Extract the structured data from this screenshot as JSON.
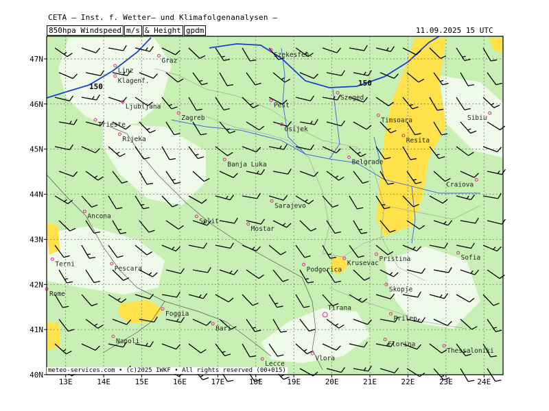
{
  "header": {
    "organization": "CETA – Inst. f. Wetter– und Klimafolgenanalysen –",
    "param_parts": [
      "850hpa Windspeed",
      "m/s",
      "& Height",
      "gpdm"
    ],
    "valid_time": "11.09.2025 15 UTC"
  },
  "footer": {
    "credit": "meteo-services.com • (c)2025 IWKF • All rights reserved (00+015)"
  },
  "map": {
    "lon_range": [
      12.5,
      24.5
    ],
    "lat_range": [
      40.0,
      47.5
    ],
    "lat_labels": [
      {
        "lat": 47,
        "text": "47N"
      },
      {
        "lat": 46,
        "text": "46N"
      },
      {
        "lat": 45,
        "text": "45N"
      },
      {
        "lat": 44,
        "text": "44N"
      },
      {
        "lat": 43,
        "text": "43N"
      },
      {
        "lat": 42,
        "text": "42N"
      },
      {
        "lat": 41,
        "text": "41N"
      },
      {
        "lat": 40,
        "text": "40N"
      }
    ],
    "lon_labels": [
      {
        "lon": 13,
        "text": "13E"
      },
      {
        "lon": 14,
        "text": "14E"
      },
      {
        "lon": 15,
        "text": "15E"
      },
      {
        "lon": 16,
        "text": "16E"
      },
      {
        "lon": 17,
        "text": "17E"
      },
      {
        "lon": 18,
        "text": "18E"
      },
      {
        "lon": 19,
        "text": "19E"
      },
      {
        "lon": 20,
        "text": "20E"
      },
      {
        "lon": 21,
        "text": "21E"
      },
      {
        "lon": 22,
        "text": "22E"
      },
      {
        "lon": 23,
        "text": "23E"
      },
      {
        "lon": 24,
        "text": "24E"
      }
    ],
    "contour_label": "150",
    "colors": {
      "calm": "#f0faea",
      "light": "#c8f0b4",
      "moderate": "#ffe14a",
      "contour": "#1a3fd6",
      "city_marker": "#d0308c"
    },
    "cities": [
      {
        "name": "Linz",
        "lon": 14.3,
        "lat": 46.85
      },
      {
        "name": "Graz",
        "lon": 15.45,
        "lat": 47.07
      },
      {
        "name": "Szekesfeh.",
        "lon": 18.4,
        "lat": 47.2
      },
      {
        "name": "Klagenf.",
        "lon": 14.3,
        "lat": 46.62
      },
      {
        "name": "Ljubljana",
        "lon": 14.5,
        "lat": 46.05
      },
      {
        "name": "Zagreb",
        "lon": 15.97,
        "lat": 45.8
      },
      {
        "name": "Pest",
        "lon": 18.4,
        "lat": 46.08
      },
      {
        "name": "Szeged",
        "lon": 20.15,
        "lat": 46.25
      },
      {
        "name": "Timsoara",
        "lon": 21.22,
        "lat": 45.75
      },
      {
        "name": "Sibiu",
        "lon": 24.15,
        "lat": 45.8
      },
      {
        "name": "Trieste",
        "lon": 13.78,
        "lat": 45.65
      },
      {
        "name": "Rijeka",
        "lon": 14.42,
        "lat": 45.33
      },
      {
        "name": "Osijek",
        "lon": 18.68,
        "lat": 45.55
      },
      {
        "name": "Resita",
        "lon": 21.88,
        "lat": 45.3
      },
      {
        "name": "Banja Luka",
        "lon": 17.18,
        "lat": 44.77
      },
      {
        "name": "Belgrade",
        "lon": 20.45,
        "lat": 44.82
      },
      {
        "name": "Craiova",
        "lon": 23.8,
        "lat": 44.32
      },
      {
        "name": "Sarajevo",
        "lon": 18.42,
        "lat": 43.85
      },
      {
        "name": "Ancona",
        "lon": 13.5,
        "lat": 43.62
      },
      {
        "name": "Split",
        "lon": 16.44,
        "lat": 43.51
      },
      {
        "name": "Mostar",
        "lon": 17.8,
        "lat": 43.34
      },
      {
        "name": "Terni",
        "lon": 12.65,
        "lat": 42.56
      },
      {
        "name": "Pristina",
        "lon": 21.17,
        "lat": 42.67
      },
      {
        "name": "Sofia",
        "lon": 23.32,
        "lat": 42.7
      },
      {
        "name": "Krusevac",
        "lon": 20.33,
        "lat": 42.58
      },
      {
        "name": "Pescara",
        "lon": 14.21,
        "lat": 42.46
      },
      {
        "name": "Podgorica",
        "lon": 19.26,
        "lat": 42.44
      },
      {
        "name": "Skopje",
        "lon": 21.43,
        "lat": 42.0
      },
      {
        "name": "Rome",
        "lon": 12.5,
        "lat": 41.9
      },
      {
        "name": "Foggia",
        "lon": 15.55,
        "lat": 41.46
      },
      {
        "name": "Tirana",
        "lon": 19.82,
        "lat": 41.33
      },
      {
        "name": "Prilep",
        "lon": 21.55,
        "lat": 41.35
      },
      {
        "name": "Bari",
        "lon": 16.87,
        "lat": 41.13
      },
      {
        "name": "Napoli",
        "lon": 14.25,
        "lat": 40.85
      },
      {
        "name": "Florina",
        "lon": 21.4,
        "lat": 40.78
      },
      {
        "name": "Thessaloniki",
        "lon": 22.95,
        "lat": 40.64
      },
      {
        "name": "Vlora",
        "lon": 19.49,
        "lat": 40.47
      },
      {
        "name": "Lecce",
        "lon": 18.17,
        "lat": 40.35
      }
    ]
  }
}
